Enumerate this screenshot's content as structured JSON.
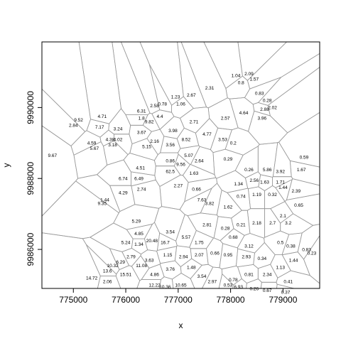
{
  "chart_data": {
    "type": "scatter",
    "title": "",
    "xlabel": "x",
    "ylabel": "y",
    "xlim": [
      774400,
      779700
    ],
    "ylim": [
      9984900,
      9991850
    ],
    "x_ticks": [
      {
        "value": 775000,
        "label": "775000"
      },
      {
        "value": 776000,
        "label": "776000"
      },
      {
        "value": 777000,
        "label": "777000"
      },
      {
        "value": 778000,
        "label": "778000"
      },
      {
        "value": 779000,
        "label": "779000"
      }
    ],
    "y_ticks": [
      {
        "value": 9986000,
        "label": "9986000"
      },
      {
        "value": 9988000,
        "label": "9988000"
      },
      {
        "value": 9990000,
        "label": "9990000"
      }
    ],
    "grid": false,
    "legend": "none",
    "overlay": "voronoi-tessellation",
    "cell_color": "#9a9a9a",
    "points": [
      {
        "x": 775600,
        "y": 9987400,
        "label": "1.44"
      },
      {
        "x": 775550,
        "y": 9987300,
        "label": "9.35"
      },
      {
        "x": 775950,
        "y": 9987600,
        "label": "4.29"
      },
      {
        "x": 776300,
        "y": 9987700,
        "label": "2.74"
      },
      {
        "x": 775950,
        "y": 9988000,
        "label": "6.74"
      },
      {
        "x": 776250,
        "y": 9988000,
        "label": "6.49"
      },
      {
        "x": 776280,
        "y": 9988300,
        "label": "4.51"
      },
      {
        "x": 775350,
        "y": 9989000,
        "label": "4.59"
      },
      {
        "x": 775400,
        "y": 9988850,
        "label": "5.67"
      },
      {
        "x": 775750,
        "y": 9988950,
        "label": "3.18"
      },
      {
        "x": 774600,
        "y": 9988650,
        "label": "9.67"
      },
      {
        "x": 775100,
        "y": 9989650,
        "label": "9.52"
      },
      {
        "x": 775000,
        "y": 9989500,
        "label": "2.84"
      },
      {
        "x": 775500,
        "y": 9989450,
        "label": "7.17"
      },
      {
        "x": 775550,
        "y": 9989750,
        "label": "4.71"
      },
      {
        "x": 775850,
        "y": 9989400,
        "label": "3.24"
      },
      {
        "x": 775700,
        "y": 9989100,
        "label": "4.38"
      },
      {
        "x": 775850,
        "y": 9989100,
        "label": "4.02"
      },
      {
        "x": 776300,
        "y": 9989300,
        "label": "3.67"
      },
      {
        "x": 776300,
        "y": 9989700,
        "label": "1.8"
      },
      {
        "x": 776450,
        "y": 9989600,
        "label": "9.82"
      },
      {
        "x": 776650,
        "y": 9989750,
        "label": "4.4"
      },
      {
        "x": 776300,
        "y": 9989900,
        "label": "6.31"
      },
      {
        "x": 776550,
        "y": 9990050,
        "label": "2.58"
      },
      {
        "x": 776700,
        "y": 9990100,
        "label": "0.78"
      },
      {
        "x": 776950,
        "y": 9990300,
        "label": "1.23"
      },
      {
        "x": 777050,
        "y": 9990100,
        "label": "1.06"
      },
      {
        "x": 777250,
        "y": 9990350,
        "label": "2.67"
      },
      {
        "x": 777600,
        "y": 9990550,
        "label": "2.31"
      },
      {
        "x": 778100,
        "y": 9990900,
        "label": "1.04"
      },
      {
        "x": 778350,
        "y": 9990950,
        "label": "2.09"
      },
      {
        "x": 778450,
        "y": 9990800,
        "label": "1.57"
      },
      {
        "x": 778200,
        "y": 9990700,
        "label": "0.8"
      },
      {
        "x": 778550,
        "y": 9990400,
        "label": "0.83"
      },
      {
        "x": 778700,
        "y": 9990200,
        "label": "0.28"
      },
      {
        "x": 778800,
        "y": 9990000,
        "label": "2.02"
      },
      {
        "x": 778650,
        "y": 9989950,
        "label": "2.88"
      },
      {
        "x": 778600,
        "y": 9989700,
        "label": "3.96"
      },
      {
        "x": 778250,
        "y": 9989850,
        "label": "4.64"
      },
      {
        "x": 777900,
        "y": 9989700,
        "label": "2.57"
      },
      {
        "x": 777300,
        "y": 9989600,
        "label": "2.71"
      },
      {
        "x": 776900,
        "y": 9989350,
        "label": "3.98"
      },
      {
        "x": 777150,
        "y": 9989100,
        "label": "8.52"
      },
      {
        "x": 777550,
        "y": 9989250,
        "label": "4.77"
      },
      {
        "x": 777850,
        "y": 9989100,
        "label": "3.53"
      },
      {
        "x": 778050,
        "y": 9989000,
        "label": "0.2"
      },
      {
        "x": 776850,
        "y": 9988950,
        "label": "3.56"
      },
      {
        "x": 776550,
        "y": 9989050,
        "label": "2.16"
      },
      {
        "x": 776400,
        "y": 9988900,
        "label": "5.15"
      },
      {
        "x": 776850,
        "y": 9988500,
        "label": "0.86"
      },
      {
        "x": 777050,
        "y": 9988400,
        "label": "9.56"
      },
      {
        "x": 776850,
        "y": 9988200,
        "label": "62.5"
      },
      {
        "x": 777300,
        "y": 9988150,
        "label": "1.63"
      },
      {
        "x": 777400,
        "y": 9988500,
        "label": "2.64"
      },
      {
        "x": 777950,
        "y": 9988550,
        "label": "0.29"
      },
      {
        "x": 777200,
        "y": 9988650,
        "label": "5.07"
      },
      {
        "x": 777000,
        "y": 9987800,
        "label": "2.27"
      },
      {
        "x": 777350,
        "y": 9987700,
        "label": "0.66"
      },
      {
        "x": 777450,
        "y": 9987400,
        "label": "7.63"
      },
      {
        "x": 777600,
        "y": 9987300,
        "label": "3.82"
      },
      {
        "x": 777950,
        "y": 9987200,
        "label": "1.62"
      },
      {
        "x": 778200,
        "y": 9987500,
        "label": "0.74"
      },
      {
        "x": 778500,
        "y": 9987550,
        "label": "1.19"
      },
      {
        "x": 778800,
        "y": 9987550,
        "label": "0.32"
      },
      {
        "x": 779000,
        "y": 9987750,
        "label": "1.44"
      },
      {
        "x": 779250,
        "y": 9987650,
        "label": "2.39"
      },
      {
        "x": 779300,
        "y": 9987250,
        "label": "0.65"
      },
      {
        "x": 779400,
        "y": 9988600,
        "label": "0.59"
      },
      {
        "x": 779350,
        "y": 9988250,
        "label": "1.67"
      },
      {
        "x": 778950,
        "y": 9988200,
        "label": "3.92"
      },
      {
        "x": 778700,
        "y": 9988250,
        "label": "5.86"
      },
      {
        "x": 778350,
        "y": 9988250,
        "label": "0.26"
      },
      {
        "x": 778450,
        "y": 9987950,
        "label": "2.56"
      },
      {
        "x": 778650,
        "y": 9987900,
        "label": "1.63"
      },
      {
        "x": 778950,
        "y": 9987900,
        "label": "1.71"
      },
      {
        "x": 778150,
        "y": 9987850,
        "label": "1.34"
      },
      {
        "x": 776200,
        "y": 9986800,
        "label": "5.29"
      },
      {
        "x": 776250,
        "y": 9986450,
        "label": "4.85"
      },
      {
        "x": 776000,
        "y": 9986200,
        "label": "5.24"
      },
      {
        "x": 776250,
        "y": 9986150,
        "label": "1.34"
      },
      {
        "x": 776500,
        "y": 9986250,
        "label": "20.48"
      },
      {
        "x": 776750,
        "y": 9986200,
        "label": "16.7"
      },
      {
        "x": 776850,
        "y": 9986500,
        "label": "3.54"
      },
      {
        "x": 777150,
        "y": 9986350,
        "label": "5.57"
      },
      {
        "x": 777400,
        "y": 9986200,
        "label": "1.75"
      },
      {
        "x": 777550,
        "y": 9986700,
        "label": "2.81"
      },
      {
        "x": 777900,
        "y": 9986600,
        "label": "0.28"
      },
      {
        "x": 778200,
        "y": 9986700,
        "label": "0.21"
      },
      {
        "x": 778500,
        "y": 9986750,
        "label": "2.18"
      },
      {
        "x": 778800,
        "y": 9986750,
        "label": "2.7"
      },
      {
        "x": 779100,
        "y": 9986750,
        "label": "3.2"
      },
      {
        "x": 779000,
        "y": 9986950,
        "label": "2.1"
      },
      {
        "x": 778950,
        "y": 9986200,
        "label": "0.5"
      },
      {
        "x": 779150,
        "y": 9986100,
        "label": "0.38"
      },
      {
        "x": 779450,
        "y": 9986000,
        "label": "0.83"
      },
      {
        "x": 779550,
        "y": 9985900,
        "label": "0.23"
      },
      {
        "x": 779200,
        "y": 9985700,
        "label": "1.44"
      },
      {
        "x": 778950,
        "y": 9985500,
        "label": "1.13"
      },
      {
        "x": 778600,
        "y": 9985750,
        "label": "0.34"
      },
      {
        "x": 778300,
        "y": 9985800,
        "label": "2.93"
      },
      {
        "x": 777950,
        "y": 9985850,
        "label": "0.95"
      },
      {
        "x": 777700,
        "y": 9985900,
        "label": "0.66"
      },
      {
        "x": 777400,
        "y": 9985850,
        "label": "2.07"
      },
      {
        "x": 777100,
        "y": 9985800,
        "label": "2.94"
      },
      {
        "x": 776800,
        "y": 9985850,
        "label": "1.15"
      },
      {
        "x": 776450,
        "y": 9985700,
        "label": "3.63"
      },
      {
        "x": 776100,
        "y": 9985800,
        "label": "2.79"
      },
      {
        "x": 775900,
        "y": 9985650,
        "label": "6.29"
      },
      {
        "x": 775750,
        "y": 9985550,
        "label": "10.32"
      },
      {
        "x": 775650,
        "y": 9985400,
        "label": "13.6"
      },
      {
        "x": 776000,
        "y": 9985300,
        "label": "15.51"
      },
      {
        "x": 775350,
        "y": 9985200,
        "label": "14.72"
      },
      {
        "x": 775650,
        "y": 9985100,
        "label": "2.06"
      },
      {
        "x": 776300,
        "y": 9985550,
        "label": "11.08"
      },
      {
        "x": 776550,
        "y": 9985300,
        "label": "4.86"
      },
      {
        "x": 776850,
        "y": 9985450,
        "label": "3.76"
      },
      {
        "x": 777250,
        "y": 9985500,
        "label": "1.48"
      },
      {
        "x": 777450,
        "y": 9985250,
        "label": "3.54"
      },
      {
        "x": 777650,
        "y": 9985100,
        "label": "2.97"
      },
      {
        "x": 777950,
        "y": 9985000,
        "label": "0.53"
      },
      {
        "x": 778150,
        "y": 9984950,
        "label": "6.93"
      },
      {
        "x": 778450,
        "y": 9984900,
        "label": "0.26"
      },
      {
        "x": 778700,
        "y": 9984850,
        "label": "0.67"
      },
      {
        "x": 779050,
        "y": 9984800,
        "label": "0.37"
      },
      {
        "x": 779100,
        "y": 9985100,
        "label": "0.41"
      },
      {
        "x": 776550,
        "y": 9985000,
        "label": "12.22"
      },
      {
        "x": 776750,
        "y": 9984950,
        "label": "10.36"
      },
      {
        "x": 777050,
        "y": 9985000,
        "label": "10.65"
      },
      {
        "x": 778050,
        "y": 9985150,
        "label": "0.78"
      },
      {
        "x": 778350,
        "y": 9985300,
        "label": "0.81"
      },
      {
        "x": 778700,
        "y": 9985300,
        "label": "2.34"
      },
      {
        "x": 778350,
        "y": 9986100,
        "label": "3.12"
      },
      {
        "x": 778050,
        "y": 9986350,
        "label": "0.68"
      }
    ]
  }
}
